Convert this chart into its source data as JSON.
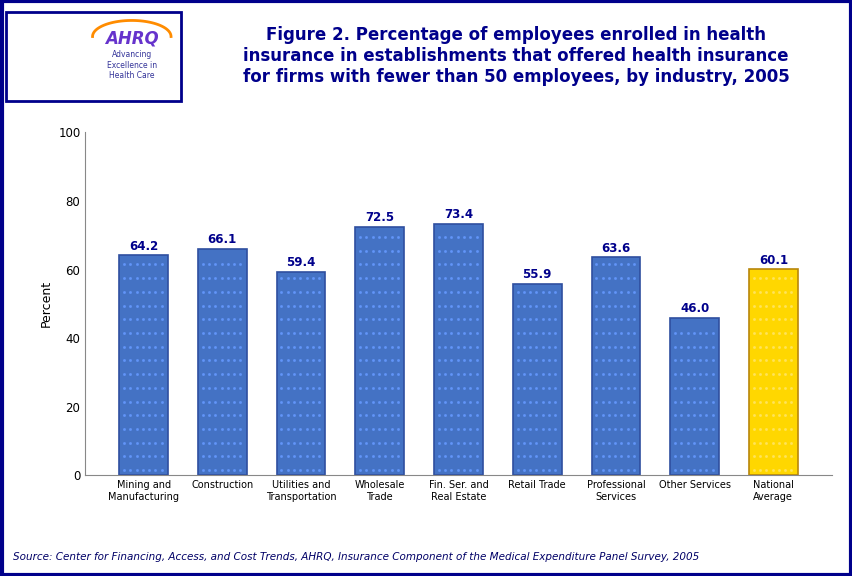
{
  "categories": [
    "Mining and\nManufacturing",
    "Construction",
    "Utilities and\nTransportation",
    "Wholesale\nTrade",
    "Fin. Ser. and\nReal Estate",
    "Retail Trade",
    "Professional\nServices",
    "Other Services",
    "National\nAverage"
  ],
  "values": [
    64.2,
    66.1,
    59.4,
    72.5,
    73.4,
    55.9,
    63.6,
    46.0,
    60.1
  ],
  "bar_colors_blue": "#4472C4",
  "bar_color_gold": "#FFD700",
  "bar_edge_blue": "#2F4F9F",
  "bar_edge_gold": "#B8860B",
  "title_line1": "Figure 2. Percentage of employees enrolled in health",
  "title_line2": "insurance in establishments that offered health insurance",
  "title_line3": "for firms with fewer than 50 employees, by industry, 2005",
  "ylabel": "Percent",
  "ylim": [
    0,
    100
  ],
  "yticks": [
    0,
    20,
    40,
    60,
    80,
    100
  ],
  "source_text": "Source: Center for Financing, Access, and Cost Trends, AHRQ, Insurance Component of the Medical Expenditure Panel Survey, 2005",
  "title_color": "#00008B",
  "background_color": "#FFFFFF",
  "header_bar_color": "#00008B",
  "value_label_color": "#00008B",
  "value_label_fontsize": 8.5,
  "tick_label_fontsize": 7,
  "ylabel_fontsize": 9,
  "title_fontsize": 12,
  "source_fontsize": 7.5,
  "logo_bg_left": "#3399CC",
  "logo_bg_right": "#FFFFFF",
  "logo_border_color": "#00008B"
}
